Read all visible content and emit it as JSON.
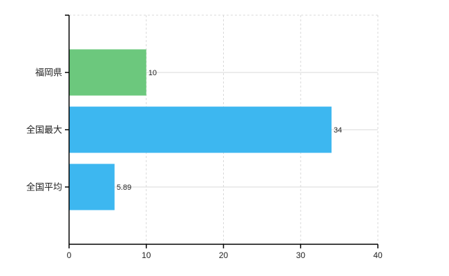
{
  "chart_data": {
    "type": "bar",
    "orientation": "horizontal",
    "title": "",
    "xlabel": "",
    "ylabel": "",
    "categories": [
      "福岡県",
      "全国最大",
      "全国平均"
    ],
    "values": [
      10,
      34,
      5.89
    ],
    "value_labels": [
      "10",
      "34",
      "5.89"
    ],
    "bar_colors": [
      "#6cc87d",
      "#3db7f0",
      "#3db7f0"
    ],
    "xlim": [
      0,
      40
    ],
    "x_ticks": [
      "0",
      "10",
      "20",
      "30",
      "40"
    ],
    "x_tick_values": [
      0,
      10,
      20,
      30,
      40
    ],
    "grid": true,
    "legend": false,
    "colors": {
      "grid": "#d9d9d9",
      "axis": "#000000",
      "text": "#222222",
      "background": "#ffffff"
    }
  }
}
